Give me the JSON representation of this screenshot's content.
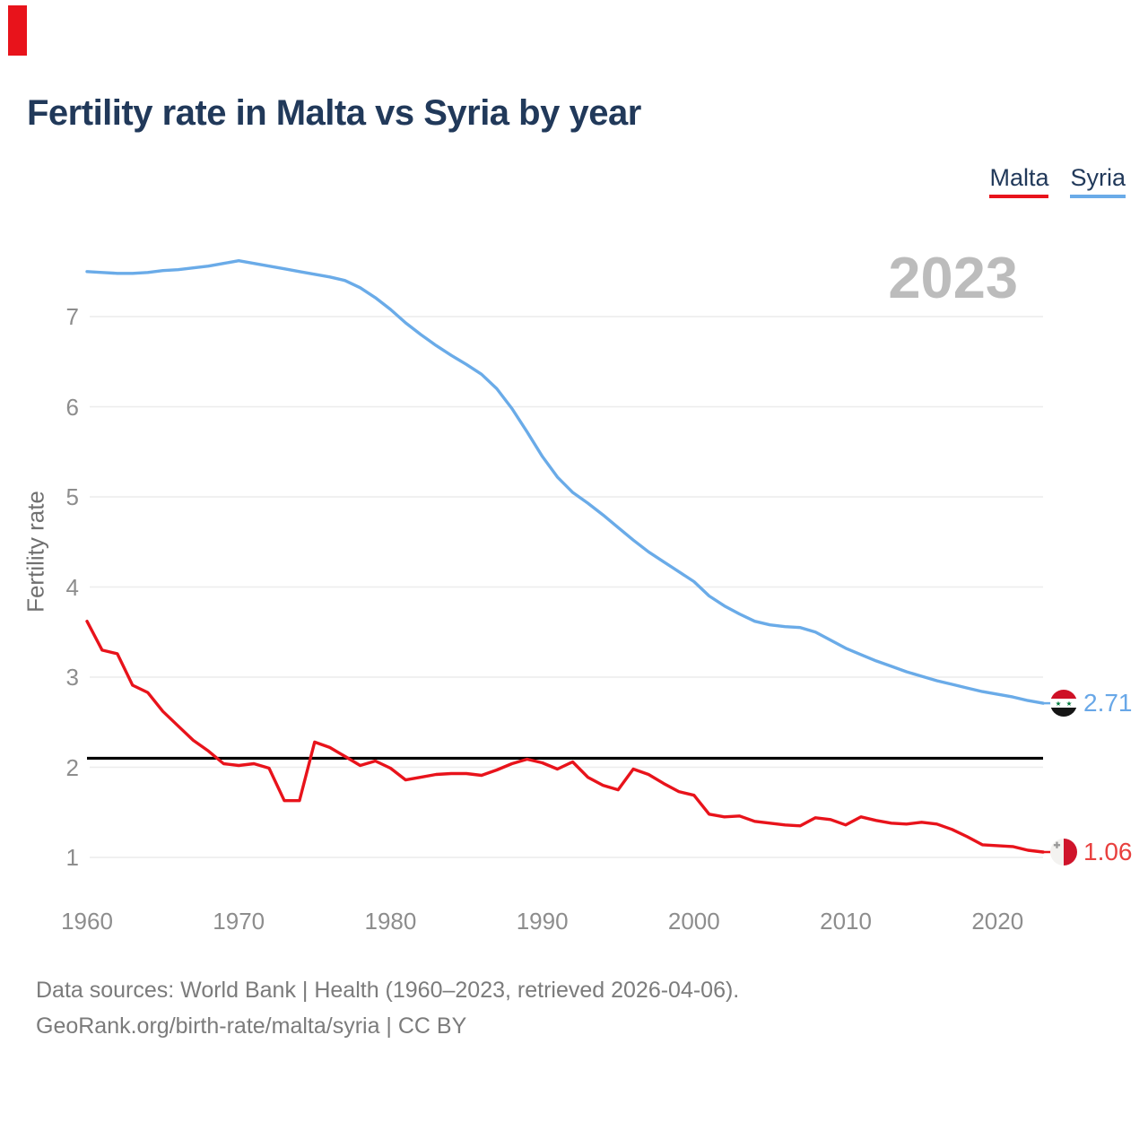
{
  "header": {
    "title": "Fertility rate in Malta vs Syria by year"
  },
  "legend": {
    "items": [
      {
        "label": "Malta",
        "color": "#e8131b"
      },
      {
        "label": "Syria",
        "color": "#6aabe8"
      }
    ]
  },
  "watermark": {
    "year": "2023"
  },
  "end_labels": {
    "syria": {
      "value": "2.71",
      "color": "#68a7e7",
      "icon": "syria-flag"
    },
    "malta": {
      "value": "1.06",
      "color": "#e8403e",
      "icon": "malta-flag"
    }
  },
  "footer": {
    "line1": "Data sources: World Bank | Health (1960–2023, retrieved 2026-04-06).",
    "line2": "GeoRank.org/birth-rate/malta/syria | CC BY"
  },
  "chart_data": {
    "type": "line",
    "title": "Fertility rate in Malta vs Syria by year",
    "xlabel": "",
    "ylabel": "Fertility rate",
    "x": [
      1960,
      1961,
      1962,
      1963,
      1964,
      1965,
      1966,
      1967,
      1968,
      1969,
      1970,
      1971,
      1972,
      1973,
      1974,
      1975,
      1976,
      1977,
      1978,
      1979,
      1980,
      1981,
      1982,
      1983,
      1984,
      1985,
      1986,
      1987,
      1988,
      1989,
      1990,
      1991,
      1992,
      1993,
      1994,
      1995,
      1996,
      1997,
      1998,
      1999,
      2000,
      2001,
      2002,
      2003,
      2004,
      2005,
      2006,
      2007,
      2008,
      2009,
      2010,
      2011,
      2012,
      2013,
      2014,
      2015,
      2016,
      2017,
      2018,
      2019,
      2020,
      2021,
      2022,
      2023
    ],
    "series": [
      {
        "name": "Malta",
        "color": "#e8131b",
        "values": [
          3.62,
          3.3,
          3.26,
          2.91,
          2.83,
          2.62,
          2.46,
          2.3,
          2.18,
          2.04,
          2.02,
          2.04,
          1.99,
          1.63,
          1.63,
          2.28,
          2.22,
          2.12,
          2.02,
          2.07,
          1.99,
          1.86,
          1.89,
          1.92,
          1.93,
          1.93,
          1.91,
          1.97,
          2.04,
          2.09,
          2.05,
          1.98,
          2.06,
          1.89,
          1.8,
          1.75,
          1.98,
          1.92,
          1.82,
          1.73,
          1.69,
          1.48,
          1.45,
          1.46,
          1.4,
          1.38,
          1.36,
          1.35,
          1.44,
          1.42,
          1.36,
          1.45,
          1.41,
          1.38,
          1.37,
          1.39,
          1.37,
          1.31,
          1.23,
          1.14,
          1.13,
          1.12,
          1.08,
          1.06
        ]
      },
      {
        "name": "Syria",
        "color": "#6aabe8",
        "values": [
          7.5,
          7.49,
          7.48,
          7.48,
          7.49,
          7.51,
          7.52,
          7.54,
          7.56,
          7.59,
          7.62,
          7.59,
          7.56,
          7.53,
          7.5,
          7.47,
          7.44,
          7.4,
          7.32,
          7.21,
          7.08,
          6.93,
          6.8,
          6.68,
          6.57,
          6.47,
          6.36,
          6.2,
          5.98,
          5.72,
          5.45,
          5.22,
          5.05,
          4.93,
          4.8,
          4.66,
          4.52,
          4.39,
          4.28,
          4.17,
          4.06,
          3.9,
          3.79,
          3.7,
          3.62,
          3.58,
          3.56,
          3.55,
          3.5,
          3.41,
          3.32,
          3.25,
          3.18,
          3.12,
          3.06,
          3.01,
          2.96,
          2.92,
          2.88,
          2.84,
          2.81,
          2.78,
          2.74,
          2.71
        ]
      }
    ],
    "reference_line": {
      "value": 2.1,
      "color": "#000000"
    },
    "x_ticks": [
      1960,
      1970,
      1980,
      1990,
      2000,
      2010,
      2020
    ],
    "y_ticks": [
      1,
      2,
      3,
      4,
      5,
      6,
      7
    ],
    "ylim": [
      0.5,
      8.0
    ],
    "xlim": [
      1960,
      2023
    ],
    "grid": "horizontal-only",
    "legend_position": "top-right",
    "watermark": "2023",
    "end_value_labels": {
      "Syria": "2.71",
      "Malta": "1.06"
    }
  },
  "colors": {
    "title_text": "#21395a",
    "axis_text": "#8d8d8d",
    "gridline": "#ececec",
    "watermark_text": "#bcbcbc",
    "footer_text": "#7b7b7b",
    "top_left_marker": "#e8131b"
  }
}
